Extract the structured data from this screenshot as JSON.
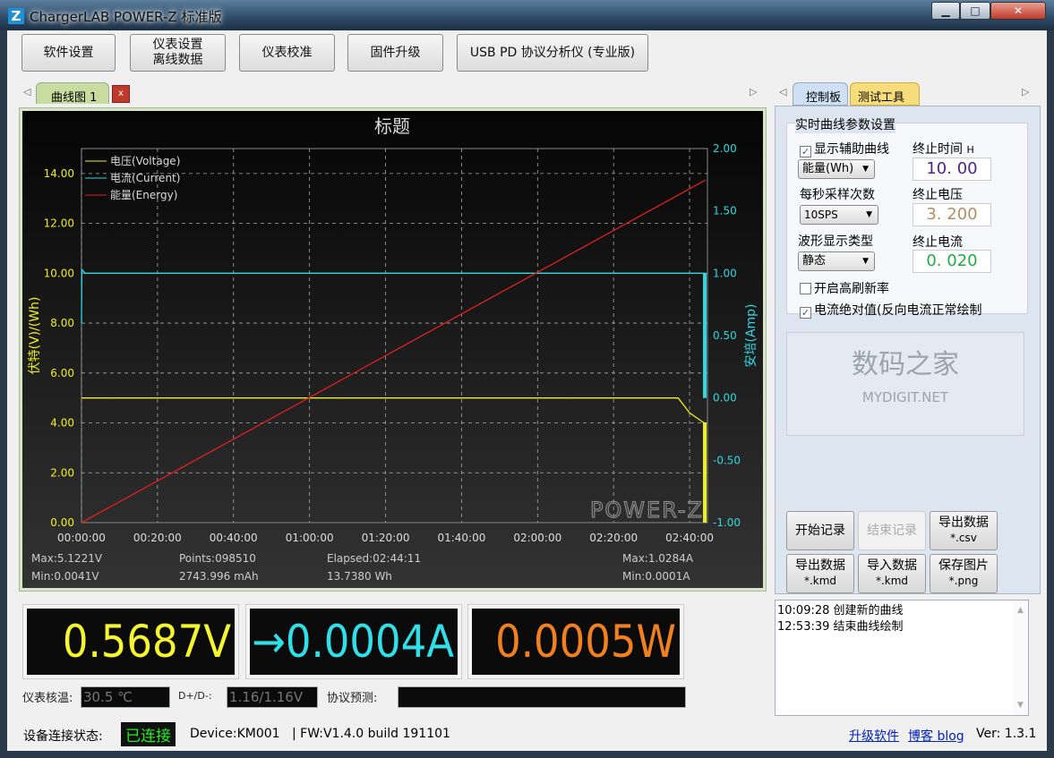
{
  "window": {
    "title": "ChargerLAB POWER-Z 标准版",
    "logo": "Z",
    "minimize": "▁",
    "maximize": "□",
    "close": "✕"
  },
  "toolbar": [
    {
      "label": "软件设置"
    },
    {
      "label": "仪表设置\n离线数据",
      "line1": "仪表设置",
      "line2": "离线数据"
    },
    {
      "label": "仪表校准"
    },
    {
      "label": "固件升级"
    },
    {
      "label": "USB PD 协议分析仪 (专业版)"
    }
  ],
  "chart_tabs": {
    "tab": "曲线图 1",
    "close": "x"
  },
  "right_tabs": [
    {
      "label": "控制板"
    },
    {
      "label": "测试工具"
    }
  ],
  "chart_data": {
    "type": "line",
    "title": "标题",
    "xlabel": "",
    "ylabel_left": "伏特(V)/(Wh)",
    "ylabel_right": "安培(Amp)",
    "x_ticks": [
      "00:00:00",
      "00:20:00",
      "00:40:00",
      "01:00:00",
      "01:20:00",
      "01:40:00",
      "02:00:00",
      "02:20:00",
      "02:40:00"
    ],
    "y_left_ticks": [
      "0.00",
      "2.00",
      "4.00",
      "6.00",
      "8.00",
      "10.00",
      "12.00",
      "14.00"
    ],
    "y_right_ticks": [
      "-1.00",
      "-0.50",
      "0.00",
      "0.50",
      "1.00",
      "1.50",
      "2.00"
    ],
    "y_left_range": [
      0,
      15
    ],
    "y_right_range": [
      -1,
      2
    ],
    "grid": true,
    "legend_position": "top-left",
    "series": [
      {
        "name": "电压(Voltage)",
        "axis": "left",
        "color": "#f0f020",
        "points": [
          [
            "00:00:00",
            5.0
          ],
          [
            "02:37:00",
            5.0
          ],
          [
            "02:40:00",
            4.4
          ],
          [
            "02:43:48",
            4.0
          ],
          [
            "02:44:11",
            4.0
          ],
          [
            "02:44:11",
            0.0
          ]
        ]
      },
      {
        "name": "电流(Current)",
        "axis": "right",
        "color": "#30d8e0",
        "points": [
          [
            "00:00:00",
            0.6
          ],
          [
            "00:00:05",
            1.03
          ],
          [
            "00:01:00",
            1.0
          ],
          [
            "02:44:00",
            1.0
          ],
          [
            "02:44:00",
            0.0
          ]
        ]
      },
      {
        "name": "能量(Energy)",
        "axis": "left",
        "color": "#e02020",
        "points": [
          [
            "00:00:00",
            0.0
          ],
          [
            "02:44:11",
            13.738
          ]
        ]
      }
    ],
    "watermark": "POWER-Z"
  },
  "stats": {
    "vmax": "Max:5.1221V",
    "vmin": "Min:0.0041V",
    "points": "Points:098510",
    "mah": "2743.996 mAh",
    "elapsed": "Elapsed:02:44:11",
    "wh": "13.7380 Wh",
    "amax": "Max:1.0284A",
    "amin": "Min:0.0001A"
  },
  "readouts": {
    "voltage": "0.5687V",
    "current": "→0.0004A",
    "power": "0.0005W",
    "colors": {
      "voltage": "#f5f530",
      "current": "#30e0e8",
      "power": "#f08020"
    }
  },
  "watermark": {
    "cn": "数码之家",
    "en": "MYDIGIT.NET"
  },
  "info": {
    "temp_label": "仪表核温:",
    "temp": "30.5 ℃",
    "dpdm_label": "D+/D-:",
    "dpdm": "1.16/1.16V",
    "proto_label": "协议预测:",
    "proto": ""
  },
  "control": {
    "group_title": "实时曲线参数设置",
    "show_aux": "显示辅助曲线",
    "show_aux_checked": true,
    "aux_select": "能量(Wh)",
    "end_time_label": "终止时间",
    "end_time_unit": "H",
    "end_time": "10. 00",
    "sps_label": "每秒采样次数",
    "sps_select": "10SPS",
    "end_voltage_label": "终止电压",
    "end_voltage": "3. 200",
    "wave_label": "波形显示类型",
    "wave_select": "静态",
    "end_current_label": "终止电流",
    "end_current": "0. 020",
    "high_refresh": "开启高刷新率",
    "high_refresh_checked": false,
    "abs_current": "电流绝对值(反向电流正常绘制",
    "abs_current_checked": true
  },
  "actions": [
    {
      "l1": "开始记录",
      "l2": ""
    },
    {
      "l1": "结束记录",
      "l2": "",
      "disabled": true
    },
    {
      "l1": "导出数据",
      "l2": "*.csv"
    },
    {
      "l1": "导出数据",
      "l2": "*.kmd"
    },
    {
      "l1": "导入数据",
      "l2": "*.kmd"
    },
    {
      "l1": "保存图片",
      "l2": "*.png"
    }
  ],
  "log": [
    "10:09:28 创建新的曲线",
    "12:53:39 结束曲线绘制"
  ],
  "status": {
    "label": "设备连接状态:",
    "state": "已连接",
    "device": "Device:KM001",
    "fw": "| FW:V1.4.0 build 191101",
    "upgrade": "升级软件",
    "blog": "博客 blog",
    "version": "Ver: 1.3.1"
  }
}
